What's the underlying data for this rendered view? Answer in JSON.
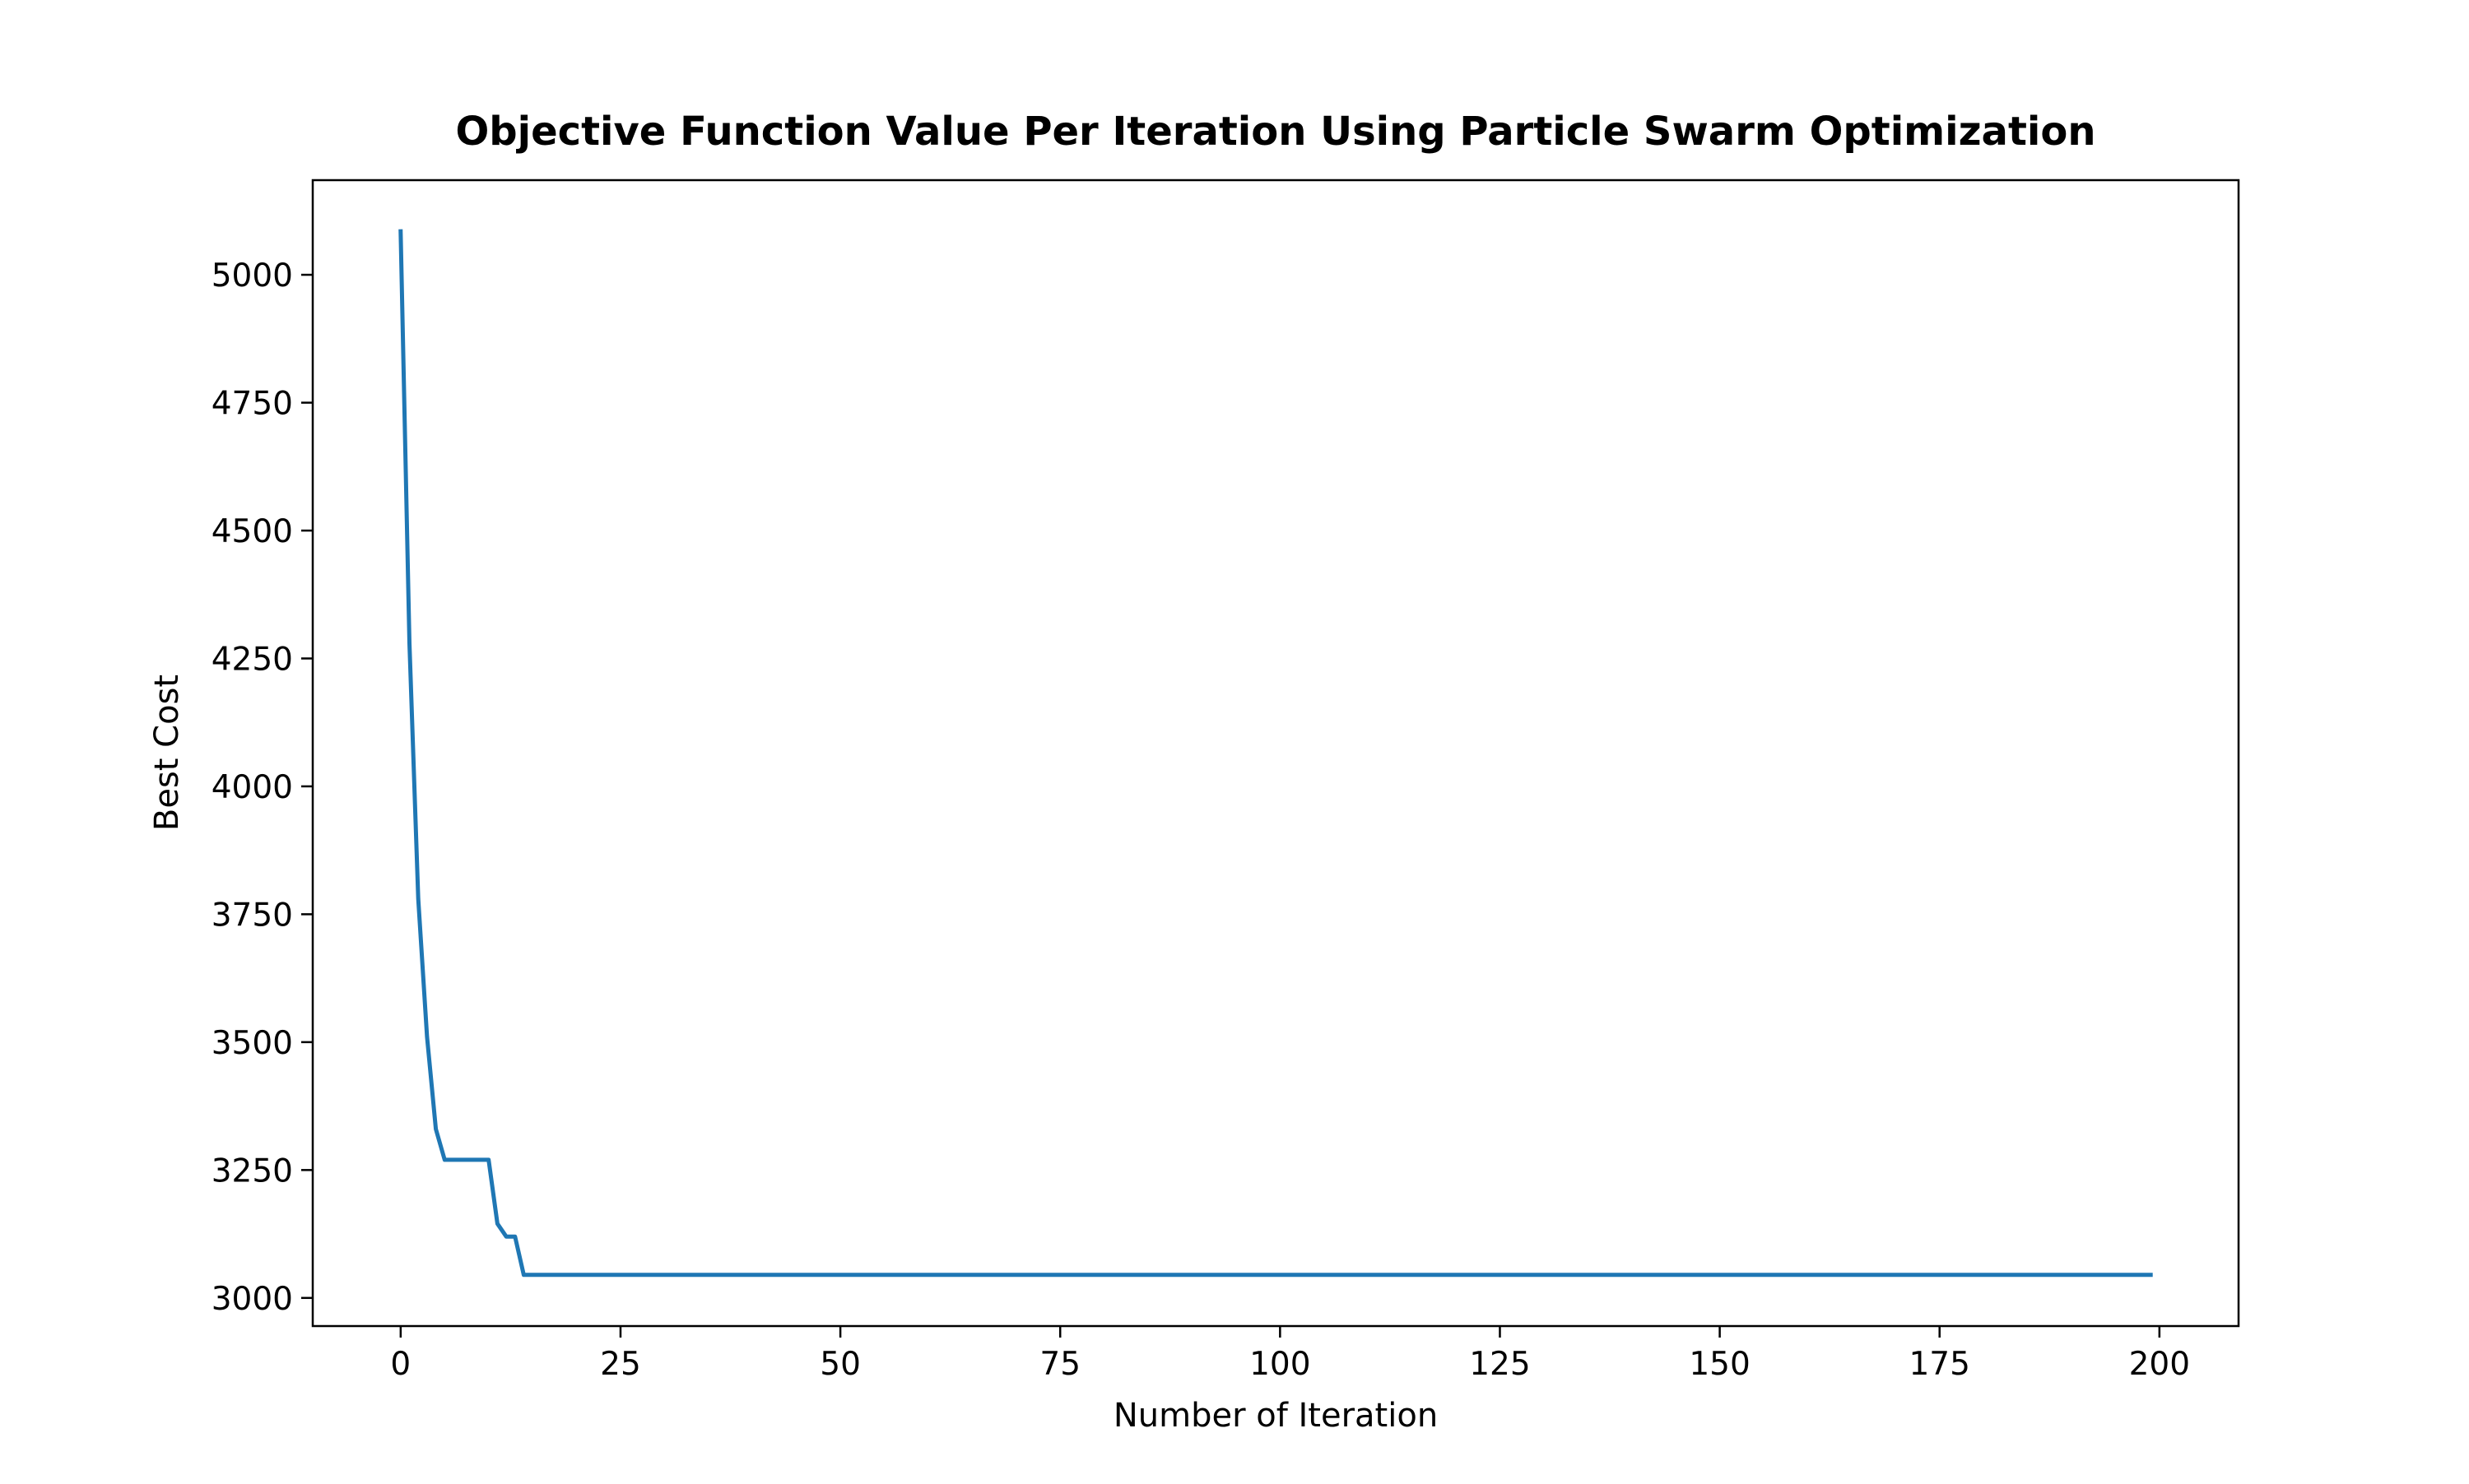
{
  "chart_data": {
    "type": "line",
    "title": "Objective Function Value Per Iteration Using Particle Swarm Optimization",
    "xlabel": "Number of Iteration",
    "ylabel": "Best Cost",
    "xlim": [
      -10,
      209
    ],
    "ylim": [
      2945,
      5185
    ],
    "xticks": [
      0,
      25,
      50,
      75,
      100,
      125,
      150,
      175,
      200
    ],
    "yticks": [
      3000,
      3250,
      3500,
      3750,
      4000,
      4250,
      4500,
      4750,
      5000
    ],
    "grid": false,
    "line_color": "#1f77b4",
    "series": [
      {
        "x": [
          0,
          1,
          2,
          3,
          4,
          5,
          6,
          7,
          8,
          9,
          10,
          11,
          12,
          13,
          14,
          199
        ],
        "values": [
          5085,
          4280,
          3780,
          3510,
          3330,
          3270,
          3270,
          3270,
          3270,
          3270,
          3270,
          3145,
          3120,
          3120,
          3045,
          3045
        ]
      }
    ]
  }
}
